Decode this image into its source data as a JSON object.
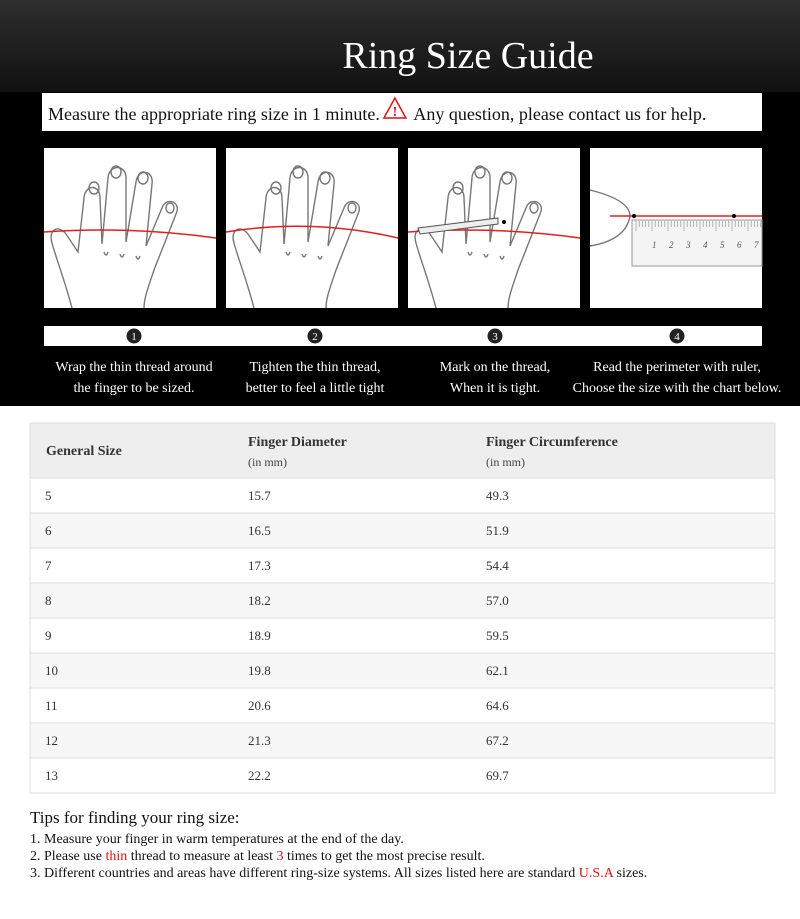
{
  "header": {
    "title": "Ring Size Guide",
    "intro_before": "Measure the appropriate ring size in 1 minute.",
    "warning_icon": "!",
    "intro_after": "Any question, please contact us for help."
  },
  "steps": [
    {
      "number": "1",
      "line1": "Wrap the thin thread around",
      "line2": "the finger to be sized."
    },
    {
      "number": "2",
      "line1": "Tighten the thin thread,",
      "line2": "better to feel a little tight"
    },
    {
      "number": "3",
      "line1": "Mark on the thread,",
      "line2": "When it is tight."
    },
    {
      "number": "4",
      "line1": "Read the perimeter with ruler,",
      "line2": "Choose the size with the chart below."
    }
  ],
  "ruler_labels": [
    "1",
    "2",
    "3",
    "4",
    "5",
    "6",
    "7"
  ],
  "table": {
    "headers": [
      [
        "General Size"
      ],
      [
        "Finger Diameter",
        "(in mm)"
      ],
      [
        "Finger Circumference",
        "(in mm)"
      ]
    ],
    "rows": [
      [
        "5",
        "15.7",
        "49.3"
      ],
      [
        "6",
        "16.5",
        "51.9"
      ],
      [
        "7",
        "17.3",
        "54.4"
      ],
      [
        "8",
        "18.2",
        "57.0"
      ],
      [
        "9",
        "18.9",
        "59.5"
      ],
      [
        "10",
        "19.8",
        "62.1"
      ],
      [
        "11",
        "20.6",
        "64.6"
      ],
      [
        "12",
        "21.3",
        "67.2"
      ],
      [
        "13",
        "22.2",
        "69.7"
      ]
    ]
  },
  "tips": {
    "title": "Tips for finding your ring size:",
    "items": [
      [
        "1. Measure your finger in warm temperatures at the end of the day."
      ],
      [
        "2. Please use ",
        "thin",
        " thread to measure at least ",
        "3",
        " times to get the most precise result."
      ],
      [
        "3. Different countries and areas have different ring-size systems. All sizes listed here are standard ",
        "U.S.A",
        " sizes."
      ]
    ]
  }
}
